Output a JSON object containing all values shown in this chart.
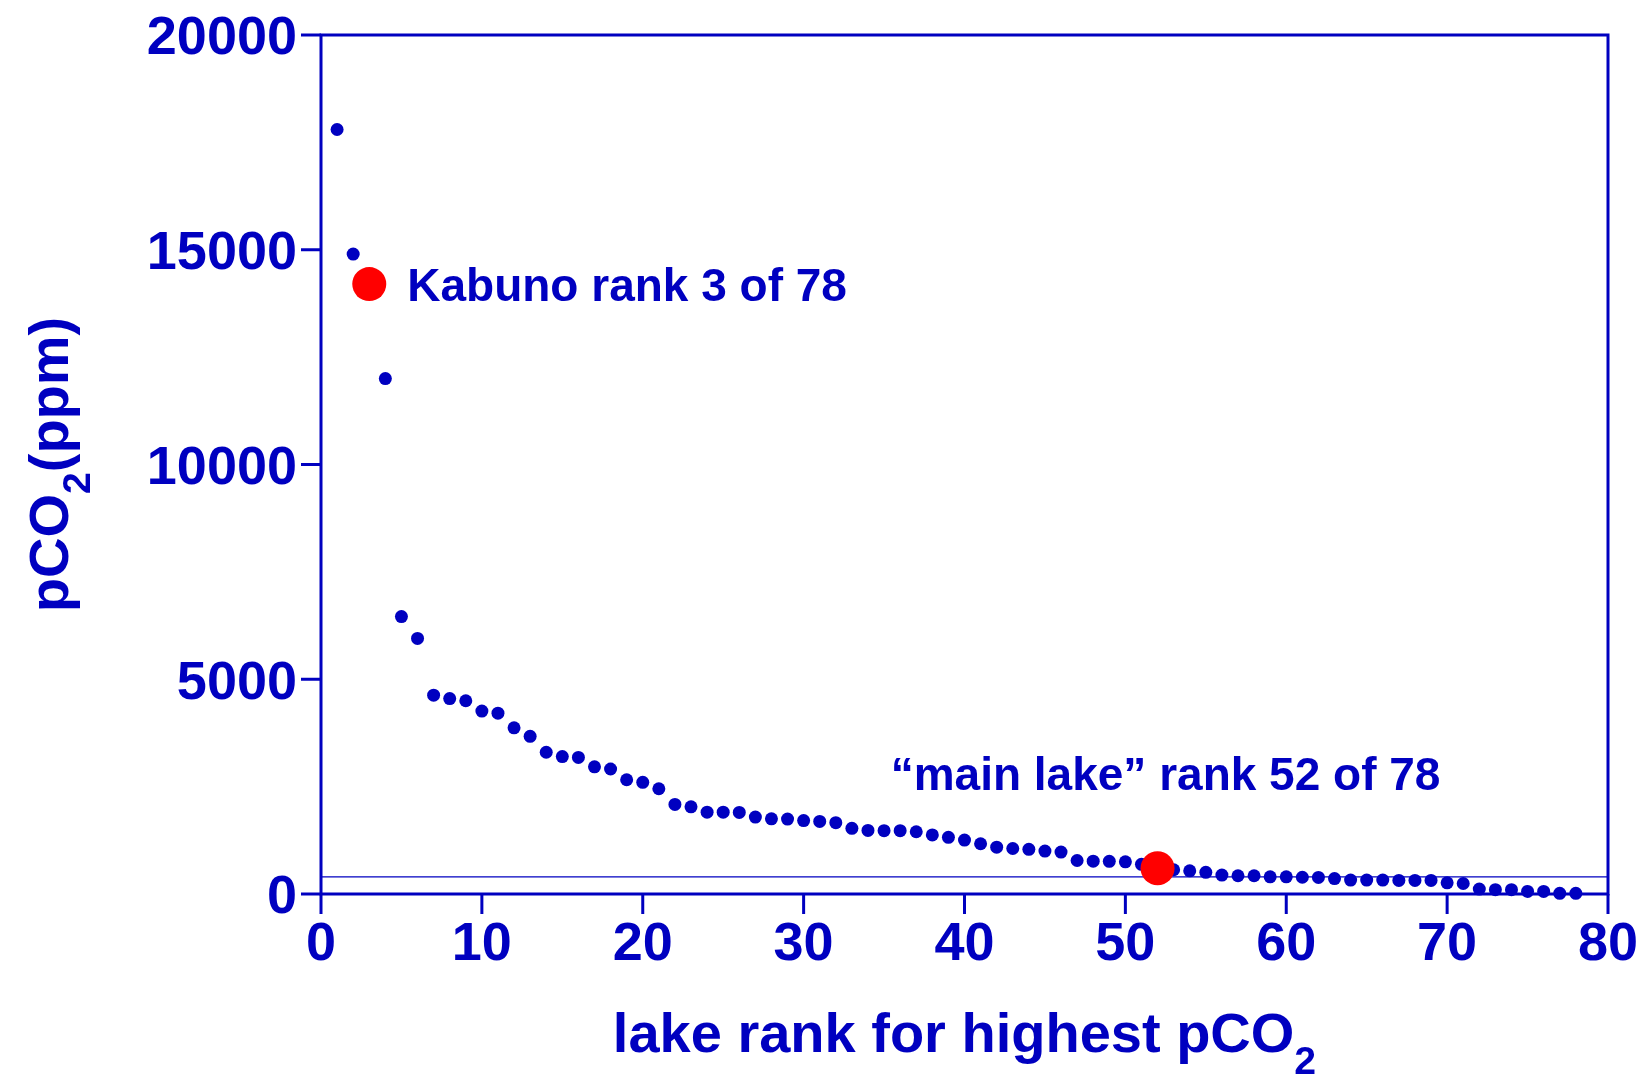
{
  "chart_data": {
    "type": "scatter",
    "xlabel": "lake rank for highest pCO$_{2}$",
    "ylabel": "pCO$_{2}$(ppm)",
    "xlim": [
      0,
      80
    ],
    "xticks": [
      0,
      10,
      20,
      30,
      40,
      50,
      60,
      70,
      80
    ],
    "ylim": [
      0,
      20000
    ],
    "yticks": [
      0,
      5000,
      10000,
      15000,
      20000
    ],
    "marker": "circle",
    "series": [
      {
        "color": "#0000c0",
        "x": [
          1,
          2,
          4,
          5,
          6,
          7,
          8,
          9,
          10,
          11,
          12,
          13,
          14,
          15,
          16,
          17,
          18,
          19,
          20,
          21,
          22,
          23,
          24,
          25,
          26,
          27,
          28,
          29,
          30,
          31,
          32,
          33,
          34,
          35,
          36,
          37,
          38,
          39,
          40,
          41,
          42,
          43,
          44,
          45,
          46,
          47,
          48,
          49,
          50,
          51,
          53,
          54,
          55,
          56,
          57,
          58,
          59,
          60,
          61,
          62,
          63,
          64,
          65,
          66,
          67,
          68,
          69,
          70,
          71,
          72,
          73,
          74,
          75,
          76,
          77,
          78
        ],
        "values": [
          17800,
          14900,
          12000,
          6460,
          5950,
          4630,
          4550,
          4500,
          4260,
          4210,
          3870,
          3670,
          3300,
          3200,
          3180,
          2960,
          2910,
          2660,
          2600,
          2450,
          2085,
          2030,
          1905,
          1905,
          1900,
          1790,
          1750,
          1745,
          1710,
          1690,
          1660,
          1530,
          1480,
          1475,
          1475,
          1450,
          1375,
          1320,
          1255,
          1170,
          1090,
          1060,
          1040,
          1000,
          975,
          780,
          765,
          760,
          750,
          690,
          565,
          540,
          505,
          440,
          425,
          425,
          400,
          400,
          390,
          385,
          360,
          325,
          325,
          325,
          315,
          315,
          315,
          260,
          245,
          115,
          100,
          100,
          60,
          60,
          15,
          15
        ]
      },
      {
        "color": "#ff0000",
        "x": [
          3,
          52
        ],
        "values": [
          14200,
          600
        ]
      }
    ],
    "ref_lines": [
      {
        "axis": "y",
        "value": 400,
        "color": "#0000c0"
      }
    ],
    "annotations": [
      {
        "text": "Kabuno rank 3 of 78",
        "x": 3,
        "y": 14200
      },
      {
        "text": "“main lake” rank 52 of 78",
        "x": 52,
        "y": 600
      }
    ]
  }
}
